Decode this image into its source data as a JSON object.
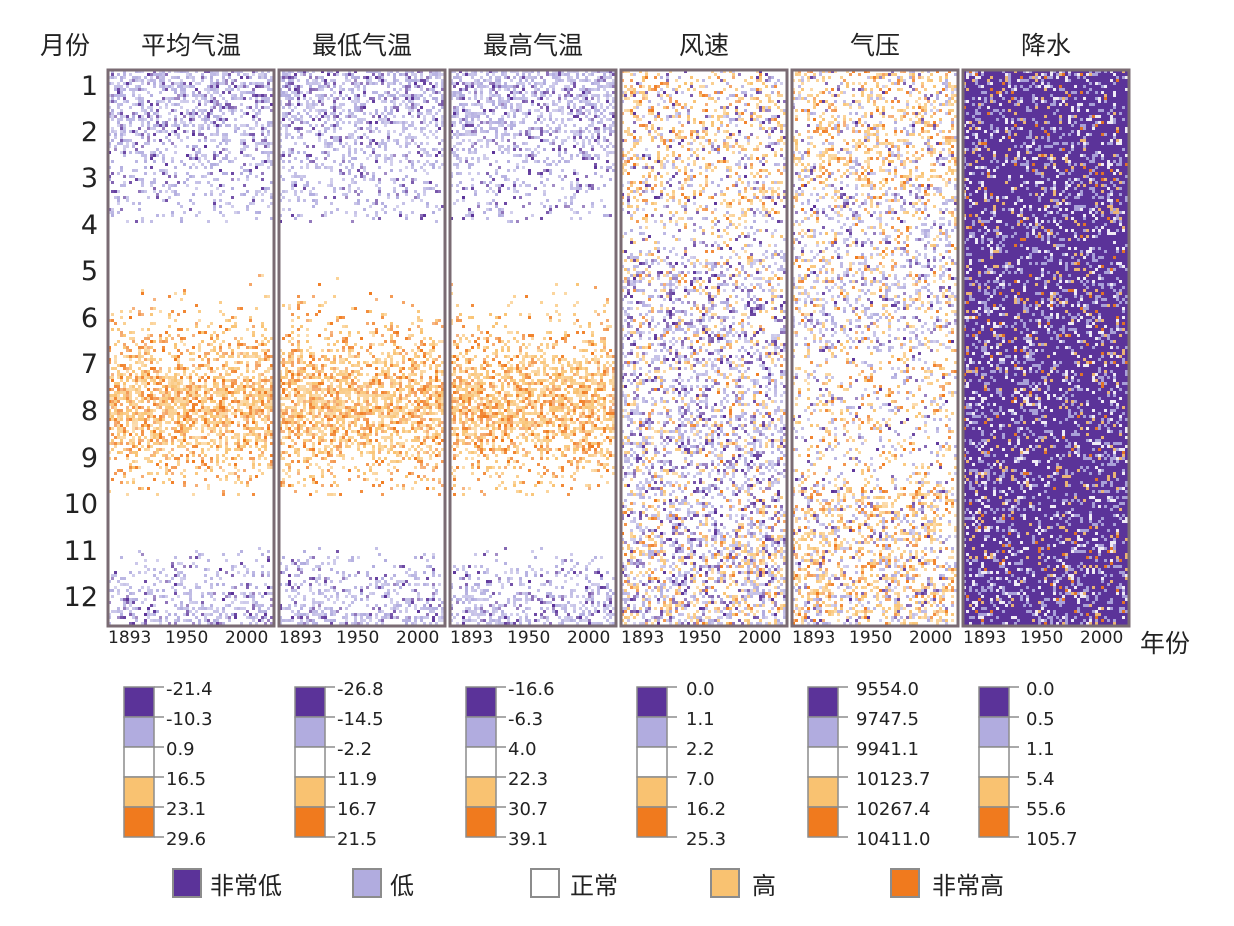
{
  "chart_data": {
    "type": "heatmap",
    "title": "",
    "ylabel": "月份",
    "xlabel": "年份",
    "months": [
      "1",
      "2",
      "3",
      "4",
      "5",
      "6",
      "7",
      "8",
      "9",
      "10",
      "11",
      "12"
    ],
    "year_ticks": [
      "1893",
      "1950",
      "2000"
    ],
    "categories": [
      {
        "name": "非常低",
        "color": "#5b3399"
      },
      {
        "name": "低",
        "color": "#b1acdf"
      },
      {
        "name": "正常",
        "color": "#ffffff"
      },
      {
        "name": "高",
        "color": "#f9c271"
      },
      {
        "name": "非常高",
        "color": "#f07a1e"
      }
    ],
    "panels": [
      {
        "title": "平均气温",
        "legend_values": [
          "-21.4",
          "-10.3",
          "0.9",
          "16.5",
          "23.1",
          "29.6"
        ]
      },
      {
        "title": "最低气温",
        "legend_values": [
          "-26.8",
          "-14.5",
          "-2.2",
          "11.9",
          "16.7",
          "21.5"
        ]
      },
      {
        "title": "最高气温",
        "legend_values": [
          "-16.6",
          "-6.3",
          "4.0",
          "22.3",
          "30.7",
          "39.1"
        ]
      },
      {
        "title": "风速",
        "legend_values": [
          "0.0",
          "1.1",
          "2.2",
          "7.0",
          "16.2",
          "25.3"
        ]
      },
      {
        "title": "气压",
        "legend_values": [
          "9554.0",
          "9747.5",
          "9941.1",
          "10123.7",
          "10267.4",
          "10411.0"
        ]
      },
      {
        "title": "降水",
        "legend_values": [
          "0.0",
          "0.5",
          "1.1",
          "5.4",
          "55.6",
          "105.7"
        ]
      }
    ]
  }
}
